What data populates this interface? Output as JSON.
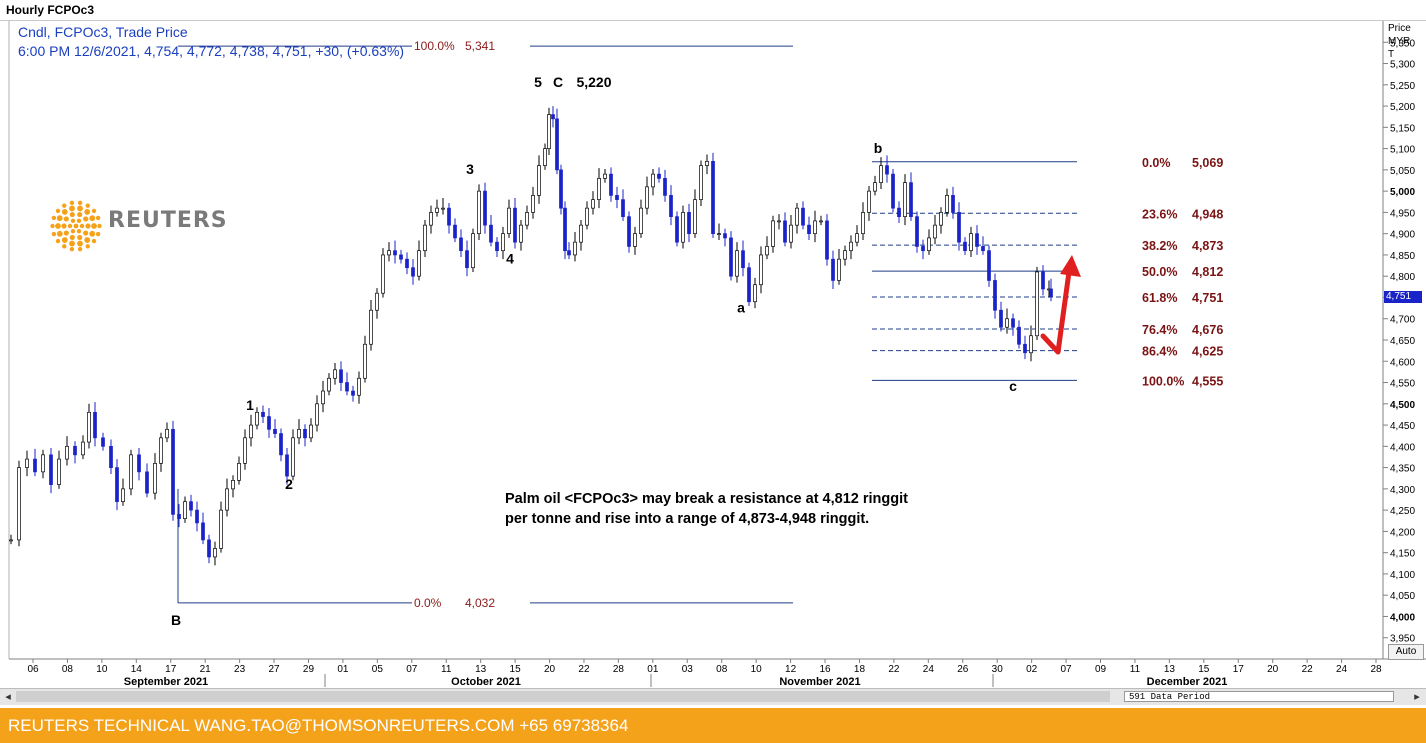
{
  "window": {
    "title": "Hourly FCPOc3"
  },
  "info": {
    "line1": "Cndl, FCPOc3, Trade Price",
    "line2": "6:00 PM 12/6/2021, 4,754, 4,772, 4,738, 4,751, +30, (+0.63%)"
  },
  "logo": {
    "text": "REUTERS"
  },
  "annotation": {
    "line1": "Palm oil <FCPOc3> may break a resistance at 4,812 ringgit",
    "line2": "per tonne and rise into a range of 4,873-4,948 ringgit."
  },
  "footer": {
    "text": "REUTERS TECHNICAL  WANG.TAO@THOMSONREUTERS.COM  +65 69738364"
  },
  "scrollbar": {
    "data_period": "591 Data Period",
    "left_arrow": "◂",
    "right_arrow": "▸"
  },
  "y_axis": {
    "title_lines": [
      "Price",
      "MYR",
      "T"
    ],
    "auto_label": "Auto",
    "last_price_tag": "4,751"
  },
  "chart_data": {
    "type": "candlestick",
    "ylim": [
      3900,
      5400
    ],
    "y_ticks": [
      3950,
      4000,
      4050,
      4100,
      4150,
      4200,
      4250,
      4300,
      4350,
      4400,
      4450,
      4500,
      4550,
      4600,
      4650,
      4700,
      4750,
      4800,
      4850,
      4900,
      4950,
      5000,
      5050,
      5100,
      5150,
      5200,
      5250,
      5300,
      5350
    ],
    "y_ticks_bold": [
      4000,
      4500,
      5000
    ],
    "x_day_labels": [
      "06",
      "08",
      "10",
      "14",
      "17",
      "21",
      "23",
      "27",
      "29",
      "01",
      "05",
      "07",
      "11",
      "13",
      "15",
      "20",
      "22",
      "28",
      "01",
      "03",
      "08",
      "10",
      "12",
      "16",
      "18",
      "22",
      "24",
      "26",
      "30",
      "02",
      "07",
      "09",
      "11",
      "13",
      "15",
      "17",
      "20",
      "22",
      "24",
      "28"
    ],
    "x_month_labels": [
      "September 2021",
      "October 2021",
      "November 2021",
      "December 2021"
    ],
    "elliott_labels": [
      {
        "text": "1",
        "price": 4485
      },
      {
        "text": "2",
        "price": 4300
      },
      {
        "text": "3",
        "price": 5040
      },
      {
        "text": "4",
        "price": 4830
      },
      {
        "text": "5",
        "price": 5245
      },
      {
        "text": "C",
        "price": 5245
      },
      {
        "text": "5,220",
        "price": 5245
      },
      {
        "text": "B",
        "price": 3980
      },
      {
        "text": "a",
        "price": 4715
      },
      {
        "text": "b",
        "price": 5090
      },
      {
        "text": "c",
        "price": 4530
      }
    ],
    "fib_major": [
      {
        "pct": "100.0%",
        "value": "5,341",
        "price": 5341
      },
      {
        "pct": "0.0%",
        "value": "4,032",
        "price": 4032
      }
    ],
    "fib_minor": [
      {
        "pct": "0.0%",
        "value": "5,069",
        "price": 5069,
        "style": "solid"
      },
      {
        "pct": "23.6%",
        "value": "4,948",
        "price": 4948,
        "style": "dashed"
      },
      {
        "pct": "38.2%",
        "value": "4,873",
        "price": 4873,
        "style": "dashed"
      },
      {
        "pct": "50.0%",
        "value": "4,812",
        "price": 4812,
        "style": "solid"
      },
      {
        "pct": "61.8%",
        "value": "4,751",
        "price": 4751,
        "style": "dashed"
      },
      {
        "pct": "76.4%",
        "value": "4,676",
        "price": 4676,
        "style": "dashed"
      },
      {
        "pct": "86.4%",
        "value": "4,625",
        "price": 4625,
        "style": "dashed"
      },
      {
        "pct": "100.0%",
        "value": "4,555",
        "price": 4555,
        "style": "solid"
      }
    ],
    "series": [
      {
        "points": [
          [
            0,
            4180
          ],
          [
            8,
            4350
          ],
          [
            16,
            4370
          ],
          [
            24,
            4340
          ],
          [
            32,
            4380
          ],
          [
            40,
            4310
          ],
          [
            48,
            4370
          ],
          [
            56,
            4400
          ],
          [
            64,
            4380
          ],
          [
            72,
            4410
          ],
          [
            78,
            4480
          ],
          [
            84,
            4420
          ],
          [
            92,
            4400
          ],
          [
            100,
            4350
          ],
          [
            106,
            4270
          ],
          [
            112,
            4300
          ],
          [
            120,
            4380
          ],
          [
            128,
            4340
          ],
          [
            136,
            4290
          ],
          [
            144,
            4360
          ],
          [
            150,
            4420
          ],
          [
            156,
            4440
          ],
          [
            162,
            4240
          ],
          [
            168,
            4230
          ],
          [
            174,
            4270
          ],
          [
            180,
            4250
          ],
          [
            186,
            4220
          ],
          [
            192,
            4180
          ],
          [
            198,
            4140
          ],
          [
            204,
            4160
          ],
          [
            210,
            4250
          ],
          [
            216,
            4300
          ],
          [
            222,
            4320
          ],
          [
            228,
            4360
          ],
          [
            234,
            4420
          ],
          [
            240,
            4450
          ],
          [
            246,
            4480
          ],
          [
            252,
            4470
          ],
          [
            258,
            4440
          ],
          [
            264,
            4430
          ],
          [
            270,
            4380
          ],
          [
            276,
            4330
          ],
          [
            282,
            4420
          ],
          [
            288,
            4440
          ],
          [
            294,
            4420
          ],
          [
            300,
            4450
          ],
          [
            306,
            4500
          ],
          [
            312,
            4530
          ],
          [
            318,
            4560
          ],
          [
            324,
            4580
          ],
          [
            330,
            4550
          ],
          [
            336,
            4530
          ],
          [
            342,
            4520
          ],
          [
            348,
            4560
          ],
          [
            354,
            4640
          ],
          [
            360,
            4720
          ],
          [
            366,
            4760
          ],
          [
            372,
            4850
          ],
          [
            378,
            4860
          ],
          [
            384,
            4850
          ],
          [
            390,
            4840
          ],
          [
            396,
            4820
          ],
          [
            402,
            4800
          ],
          [
            408,
            4860
          ],
          [
            414,
            4920
          ],
          [
            420,
            4950
          ],
          [
            426,
            4960
          ],
          [
            432,
            4960
          ],
          [
            438,
            4920
          ],
          [
            444,
            4890
          ],
          [
            450,
            4860
          ],
          [
            456,
            4820
          ],
          [
            462,
            4900
          ],
          [
            468,
            5000
          ],
          [
            474,
            4920
          ],
          [
            480,
            4880
          ],
          [
            486,
            4860
          ],
          [
            492,
            4900
          ],
          [
            498,
            4960
          ],
          [
            504,
            4880
          ],
          [
            510,
            4920
          ],
          [
            516,
            4950
          ],
          [
            522,
            4990
          ],
          [
            528,
            5060
          ],
          [
            534,
            5100
          ],
          [
            538,
            5180
          ],
          [
            542,
            5170
          ],
          [
            546,
            5050
          ],
          [
            550,
            4960
          ],
          [
            554,
            4860
          ],
          [
            558,
            4850
          ],
          [
            564,
            4880
          ],
          [
            570,
            4920
          ],
          [
            576,
            4960
          ],
          [
            582,
            4980
          ],
          [
            588,
            5030
          ],
          [
            594,
            5040
          ],
          [
            600,
            4990
          ],
          [
            606,
            4980
          ],
          [
            612,
            4940
          ],
          [
            618,
            4870
          ],
          [
            624,
            4900
          ],
          [
            630,
            4960
          ],
          [
            636,
            5010
          ],
          [
            642,
            5040
          ],
          [
            648,
            5030
          ],
          [
            654,
            4990
          ],
          [
            660,
            4940
          ],
          [
            666,
            4880
          ],
          [
            672,
            4950
          ],
          [
            678,
            4900
          ],
          [
            684,
            4980
          ],
          [
            690,
            5060
          ],
          [
            696,
            5070
          ],
          [
            702,
            4900
          ],
          [
            708,
            4900
          ],
          [
            714,
            4890
          ],
          [
            720,
            4800
          ],
          [
            726,
            4860
          ],
          [
            732,
            4820
          ],
          [
            738,
            4740
          ],
          [
            744,
            4780
          ],
          [
            750,
            4850
          ],
          [
            756,
            4870
          ],
          [
            762,
            4930
          ],
          [
            768,
            4930
          ],
          [
            774,
            4880
          ],
          [
            780,
            4920
          ],
          [
            786,
            4960
          ],
          [
            792,
            4920
          ],
          [
            798,
            4900
          ],
          [
            804,
            4930
          ],
          [
            810,
            4930
          ],
          [
            816,
            4840
          ],
          [
            822,
            4790
          ],
          [
            828,
            4840
          ],
          [
            834,
            4860
          ],
          [
            840,
            4880
          ],
          [
            846,
            4900
          ],
          [
            852,
            4950
          ],
          [
            858,
            5000
          ],
          [
            864,
            5020
          ],
          [
            870,
            5060
          ],
          [
            876,
            5040
          ],
          [
            882,
            4960
          ],
          [
            888,
            4940
          ],
          [
            894,
            5020
          ],
          [
            900,
            4940
          ],
          [
            906,
            4870
          ],
          [
            912,
            4860
          ],
          [
            918,
            4890
          ],
          [
            924,
            4920
          ],
          [
            930,
            4950
          ],
          [
            936,
            4990
          ],
          [
            942,
            4950
          ],
          [
            948,
            4880
          ],
          [
            954,
            4860
          ],
          [
            960,
            4900
          ],
          [
            966,
            4870
          ],
          [
            972,
            4860
          ],
          [
            978,
            4790
          ],
          [
            984,
            4720
          ],
          [
            990,
            4680
          ],
          [
            996,
            4700
          ],
          [
            1002,
            4680
          ],
          [
            1008,
            4640
          ],
          [
            1014,
            4620
          ],
          [
            1020,
            4660
          ],
          [
            1026,
            4810
          ],
          [
            1032,
            4770
          ],
          [
            1038,
            4770
          ],
          [
            1040,
            4751
          ]
        ]
      }
    ]
  }
}
